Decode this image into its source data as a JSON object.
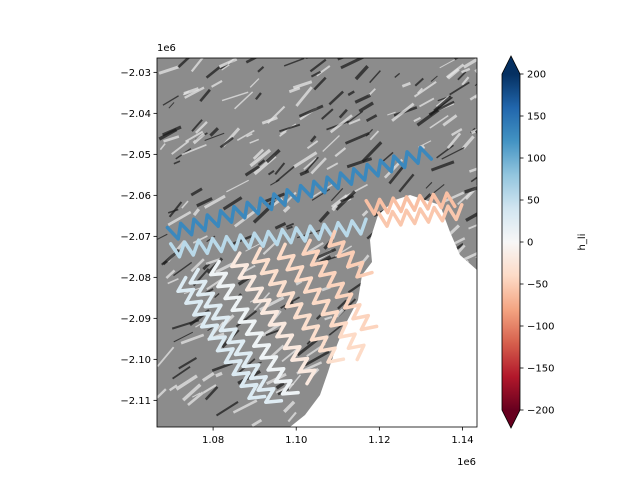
{
  "chart_data": {
    "type": "scatter",
    "title": "",
    "xlabel": "",
    "ylabel": "",
    "x_offset_label": "1e6",
    "y_offset_label": "1e6",
    "xlim": [
      1.0665,
      1.1435
    ],
    "ylim": [
      -2.1165,
      -2.0265
    ],
    "x_ticks": [
      1.08,
      1.1,
      1.12,
      1.14
    ],
    "x_tick_labels": [
      "1.08",
      "1.10",
      "1.12",
      "1.14"
    ],
    "y_ticks": [
      -2.03,
      -2.04,
      -2.05,
      -2.06,
      -2.07,
      -2.08,
      -2.09,
      -2.1,
      -2.11
    ],
    "y_tick_labels": [
      "−2.03",
      "−2.04",
      "−2.05",
      "−2.06",
      "−2.07",
      "−2.08",
      "−2.09",
      "−2.10",
      "−2.11"
    ],
    "colorbar": {
      "label": "h_li",
      "colormap": "RdBu",
      "range": [
        -200,
        200
      ],
      "extend": "both",
      "ticks": [
        200,
        150,
        100,
        50,
        0,
        -50,
        -100,
        -150,
        -200
      ],
      "tick_labels": [
        "200",
        "150",
        "100",
        "50",
        "0",
        "−50",
        "−100",
        "−150",
        "−200"
      ]
    },
    "background": "grayscale shaded-relief image",
    "tracks": [
      {
        "start": [
          1.0695,
          -2.0695
        ],
        "end": [
          1.132,
          -2.0495
        ],
        "h_li": 130
      },
      {
        "start": [
          1.07,
          -2.0735
        ],
        "end": [
          1.117,
          -2.0675
        ],
        "h_li": 55
      },
      {
        "start": [
          1.072,
          -2.081
        ],
        "end": [
          1.091,
          -2.11
        ],
        "h_li": 30
      },
      {
        "start": [
          1.075,
          -2.079
        ],
        "end": [
          1.095,
          -2.111
        ],
        "h_li": 25
      },
      {
        "start": [
          1.08,
          -2.077
        ],
        "end": [
          1.099,
          -2.109
        ],
        "h_li": 10
      },
      {
        "start": [
          1.085,
          -2.075
        ],
        "end": [
          1.104,
          -2.105
        ],
        "h_li": -20
      },
      {
        "start": [
          1.09,
          -2.074
        ],
        "end": [
          1.11,
          -2.101
        ],
        "h_li": -35
      },
      {
        "start": [
          1.096,
          -2.073
        ],
        "end": [
          1.116,
          -2.099
        ],
        "h_li": -40
      },
      {
        "start": [
          1.102,
          -2.072
        ],
        "end": [
          1.118,
          -2.093
        ],
        "h_li": -45
      },
      {
        "start": [
          1.108,
          -2.07
        ],
        "end": [
          1.117,
          -2.08
        ],
        "h_li": -50
      },
      {
        "start": [
          1.117,
          -2.063
        ],
        "end": [
          1.138,
          -2.061
        ],
        "h_li": -60
      },
      {
        "start": [
          1.12,
          -2.066
        ],
        "end": [
          1.14,
          -2.064
        ],
        "h_li": -55
      }
    ]
  }
}
